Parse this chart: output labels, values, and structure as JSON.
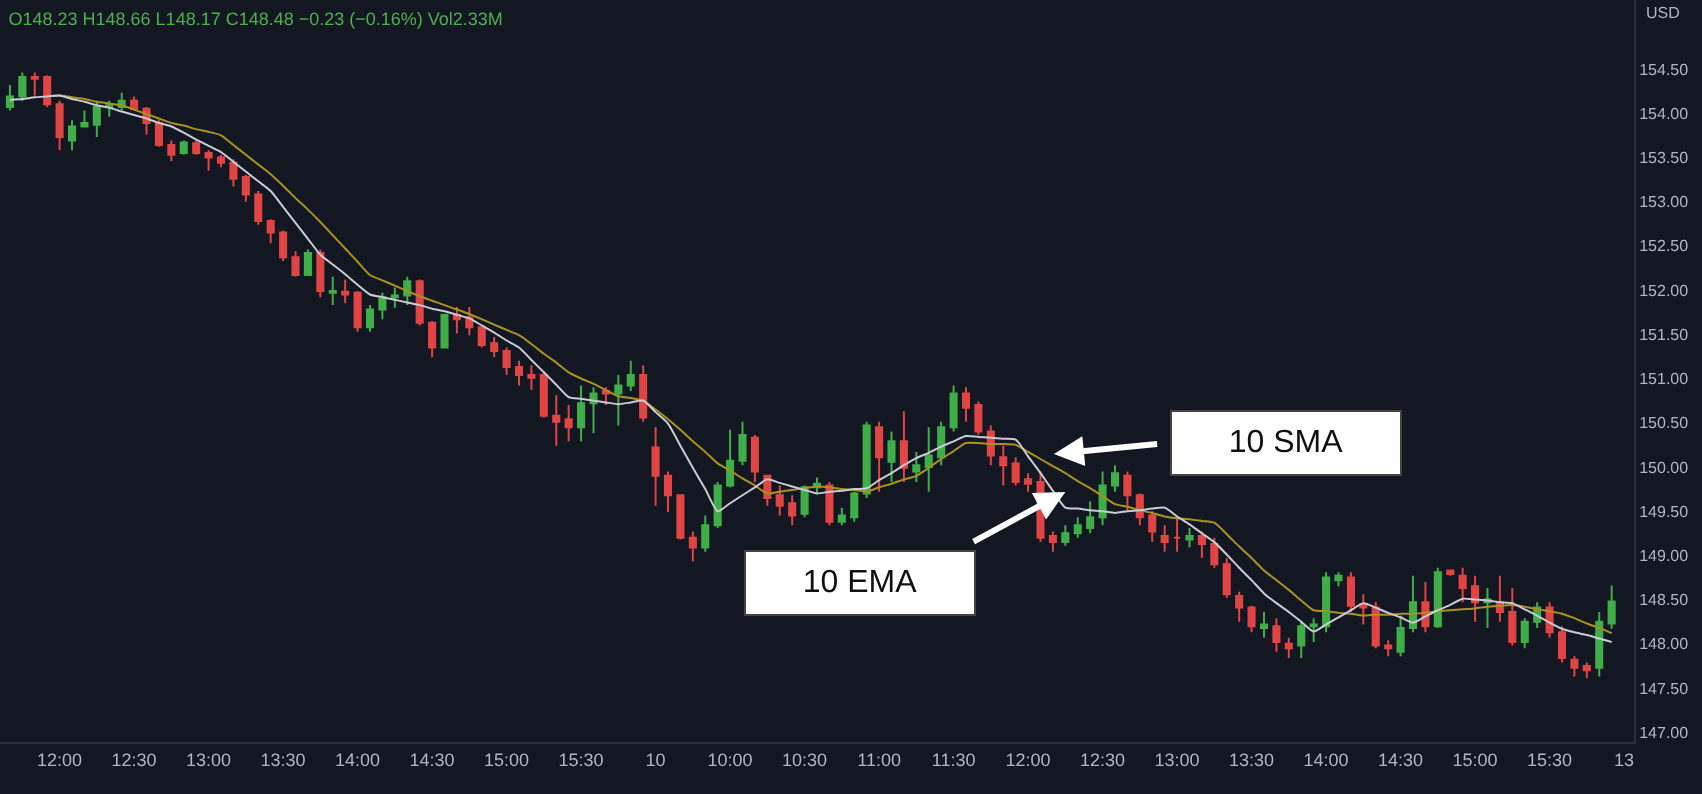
{
  "chart_data": {
    "type": "candlestick",
    "title": "O148.23 H148.66 L148.17 C148.48 −0.23 (−0.16%) Vol2.33M",
    "ylabel": "USD",
    "categories": [
      null,
      null,
      null,
      null,
      "12:00",
      null,
      null,
      null,
      null,
      null,
      "12:30",
      null,
      null,
      null,
      null,
      null,
      "13:00",
      null,
      null,
      null,
      null,
      null,
      "13:30",
      null,
      null,
      null,
      null,
      null,
      "14:00",
      null,
      null,
      null,
      null,
      null,
      "14:30",
      null,
      null,
      null,
      null,
      null,
      "15:00",
      null,
      null,
      null,
      null,
      null,
      "15:30",
      null,
      null,
      null,
      null,
      null,
      "10",
      null,
      null,
      null,
      null,
      null,
      "10:00",
      null,
      null,
      null,
      null,
      null,
      "10:30",
      null,
      null,
      null,
      null,
      null,
      "11:00",
      null,
      null,
      null,
      null,
      null,
      "11:30",
      null,
      null,
      null,
      null,
      null,
      "12:00",
      null,
      null,
      null,
      null,
      null,
      "12:30",
      null,
      null,
      null,
      null,
      null,
      "13:00",
      null,
      null,
      null,
      null,
      null,
      "13:30",
      null,
      null,
      null,
      null,
      null,
      "14:00",
      null,
      null,
      null,
      null,
      null,
      "14:30",
      null,
      null,
      null,
      null,
      null,
      "15:00",
      null,
      null,
      null,
      null,
      null,
      "15:30",
      null,
      null,
      null,
      null,
      null,
      "13"
    ],
    "ohlc": [
      [
        154.07,
        154.32,
        154.03,
        154.19
      ],
      [
        154.19,
        154.46,
        154.14,
        154.41
      ],
      [
        154.41,
        154.46,
        154.2,
        154.39
      ],
      [
        154.41,
        154.43,
        154.07,
        154.1
      ],
      [
        154.1,
        154.14,
        153.58,
        153.73
      ],
      [
        153.69,
        153.92,
        153.58,
        153.85
      ],
      [
        153.85,
        154.03,
        153.85,
        153.89
      ],
      [
        153.87,
        154.14,
        153.73,
        154.07
      ],
      [
        154.07,
        154.14,
        153.96,
        154.09
      ],
      [
        154.07,
        154.23,
        154.03,
        154.14
      ],
      [
        154.14,
        154.19,
        154.03,
        154.05
      ],
      [
        154.05,
        154.07,
        153.76,
        153.89
      ],
      [
        153.89,
        153.92,
        153.62,
        153.64
      ],
      [
        153.64,
        153.69,
        153.46,
        153.53
      ],
      [
        153.55,
        153.69,
        153.53,
        153.67
      ],
      [
        153.66,
        153.69,
        153.53,
        153.55
      ],
      [
        153.55,
        153.58,
        153.35,
        153.5
      ],
      [
        153.5,
        153.53,
        153.39,
        153.44
      ],
      [
        153.44,
        153.48,
        153.17,
        153.26
      ],
      [
        153.28,
        153.3,
        153.0,
        153.08
      ],
      [
        153.08,
        153.12,
        152.74,
        152.78
      ],
      [
        152.78,
        152.8,
        152.53,
        152.65
      ],
      [
        152.65,
        152.67,
        152.33,
        152.37
      ],
      [
        152.37,
        152.44,
        152.15,
        152.17
      ],
      [
        152.17,
        152.46,
        152.17,
        152.42
      ],
      [
        152.42,
        152.46,
        151.92,
        151.99
      ],
      [
        151.97,
        152.15,
        151.83,
        151.99
      ],
      [
        151.98,
        152.12,
        151.85,
        151.95
      ],
      [
        151.97,
        151.99,
        151.53,
        151.58
      ],
      [
        151.58,
        151.83,
        151.53,
        151.78
      ],
      [
        151.78,
        151.97,
        151.67,
        151.92
      ],
      [
        151.92,
        152.03,
        151.8,
        151.94
      ],
      [
        151.94,
        152.15,
        151.83,
        152.1
      ],
      [
        152.1,
        152.12,
        151.6,
        151.63
      ],
      [
        151.63,
        151.65,
        151.24,
        151.35
      ],
      [
        151.35,
        151.72,
        151.35,
        151.72
      ],
      [
        151.72,
        151.81,
        151.51,
        151.67
      ],
      [
        151.69,
        151.81,
        151.49,
        151.58
      ],
      [
        151.58,
        151.6,
        151.35,
        151.38
      ],
      [
        151.4,
        151.47,
        151.24,
        151.31
      ],
      [
        151.31,
        151.35,
        151.04,
        151.13
      ],
      [
        151.13,
        151.2,
        150.92,
        151.04
      ],
      [
        151.04,
        151.15,
        150.87,
        151.01
      ],
      [
        151.04,
        151.08,
        150.56,
        150.58
      ],
      [
        150.58,
        150.81,
        150.24,
        150.51
      ],
      [
        150.54,
        150.7,
        150.29,
        150.45
      ],
      [
        150.45,
        150.92,
        150.29,
        150.72
      ],
      [
        150.72,
        150.9,
        150.38,
        150.83
      ],
      [
        150.86,
        150.9,
        150.7,
        150.83
      ],
      [
        150.83,
        151.04,
        150.47,
        150.92
      ],
      [
        150.92,
        151.2,
        150.86,
        151.04
      ],
      [
        151.04,
        151.15,
        150.51,
        150.56
      ],
      [
        150.22,
        150.45,
        149.56,
        149.9
      ],
      [
        149.9,
        149.95,
        149.49,
        149.68
      ],
      [
        149.68,
        149.68,
        149.18,
        149.2
      ],
      [
        149.2,
        149.27,
        148.93,
        149.09
      ],
      [
        149.09,
        149.45,
        149.04,
        149.34
      ],
      [
        149.34,
        149.83,
        149.31,
        149.79
      ],
      [
        149.79,
        150.42,
        149.77,
        150.07
      ],
      [
        150.07,
        150.51,
        150.02,
        150.36
      ],
      [
        150.33,
        150.36,
        149.83,
        149.95
      ],
      [
        149.9,
        149.9,
        149.56,
        149.65
      ],
      [
        149.68,
        149.79,
        149.45,
        149.56
      ],
      [
        149.59,
        149.68,
        149.34,
        149.45
      ],
      [
        149.47,
        149.79,
        149.43,
        149.77
      ],
      [
        149.77,
        149.88,
        149.7,
        149.81
      ],
      [
        149.79,
        149.83,
        149.34,
        149.38
      ],
      [
        149.38,
        149.54,
        149.34,
        149.45
      ],
      [
        149.43,
        149.72,
        149.38,
        149.7
      ],
      [
        149.7,
        150.51,
        149.65,
        150.47
      ],
      [
        150.45,
        150.51,
        149.72,
        150.11
      ],
      [
        150.06,
        150.4,
        149.83,
        150.29
      ],
      [
        150.29,
        150.63,
        149.83,
        149.99
      ],
      [
        149.95,
        150.17,
        149.83,
        150.02
      ],
      [
        150.0,
        150.45,
        149.72,
        150.13
      ],
      [
        150.11,
        150.51,
        150.02,
        150.45
      ],
      [
        150.45,
        150.92,
        150.4,
        150.83
      ],
      [
        150.83,
        150.9,
        150.51,
        150.67
      ],
      [
        150.7,
        150.74,
        150.36,
        150.4
      ],
      [
        150.4,
        150.47,
        150.02,
        150.13
      ],
      [
        150.11,
        150.24,
        149.79,
        150.02
      ],
      [
        150.04,
        150.11,
        149.79,
        149.83
      ],
      [
        149.86,
        149.93,
        149.72,
        149.81
      ],
      [
        149.83,
        149.95,
        149.15,
        149.2
      ],
      [
        149.22,
        149.27,
        149.04,
        149.15
      ],
      [
        149.15,
        149.34,
        149.11,
        149.25
      ],
      [
        149.25,
        149.43,
        149.2,
        149.34
      ],
      [
        149.31,
        149.61,
        149.25,
        149.43
      ],
      [
        149.43,
        149.95,
        149.34,
        149.79
      ],
      [
        149.79,
        150.02,
        149.72,
        149.93
      ],
      [
        149.9,
        149.95,
        149.49,
        149.68
      ],
      [
        149.68,
        149.7,
        149.34,
        149.43
      ],
      [
        149.45,
        149.5,
        149.15,
        149.27
      ],
      [
        149.22,
        149.34,
        149.04,
        149.15
      ],
      [
        149.2,
        149.43,
        149.04,
        149.2
      ],
      [
        149.18,
        149.31,
        149.09,
        149.22
      ],
      [
        149.22,
        149.27,
        148.97,
        149.13
      ],
      [
        149.13,
        149.2,
        148.86,
        148.9
      ],
      [
        148.9,
        148.97,
        148.52,
        148.56
      ],
      [
        148.54,
        148.59,
        148.25,
        148.41
      ],
      [
        148.41,
        148.43,
        148.13,
        148.2
      ],
      [
        148.18,
        148.36,
        148.07,
        148.22
      ],
      [
        148.2,
        148.29,
        147.91,
        148.02
      ],
      [
        148.0,
        148.07,
        147.84,
        147.95
      ],
      [
        147.98,
        148.25,
        147.84,
        148.2
      ],
      [
        148.2,
        148.29,
        148.02,
        148.22
      ],
      [
        148.2,
        148.81,
        148.13,
        148.75
      ],
      [
        148.72,
        148.81,
        148.65,
        148.77
      ],
      [
        148.75,
        148.81,
        148.36,
        148.43
      ],
      [
        148.45,
        148.56,
        148.22,
        148.41
      ],
      [
        148.41,
        148.47,
        147.95,
        147.98
      ],
      [
        147.98,
        148.04,
        147.86,
        147.95
      ],
      [
        147.91,
        148.32,
        147.86,
        148.18
      ],
      [
        148.18,
        148.77,
        148.13,
        148.47
      ],
      [
        148.47,
        148.7,
        148.13,
        148.2
      ],
      [
        148.2,
        148.86,
        148.18,
        148.81
      ],
      [
        148.83,
        148.84,
        148.77,
        148.79
      ],
      [
        148.77,
        148.86,
        148.47,
        148.63
      ],
      [
        148.65,
        148.77,
        148.25,
        148.47
      ],
      [
        148.47,
        148.63,
        148.18,
        148.5
      ],
      [
        148.47,
        148.77,
        148.25,
        148.36
      ],
      [
        148.36,
        148.63,
        147.98,
        148.02
      ],
      [
        148.02,
        148.29,
        147.95,
        148.25
      ],
      [
        148.25,
        148.47,
        148.18,
        148.41
      ],
      [
        148.41,
        148.47,
        148.07,
        148.13
      ],
      [
        148.13,
        148.2,
        147.79,
        147.84
      ],
      [
        147.82,
        147.86,
        147.63,
        147.73
      ],
      [
        147.75,
        147.79,
        147.61,
        147.7
      ],
      [
        147.73,
        148.36,
        147.63,
        148.25
      ],
      [
        148.23,
        148.66,
        148.17,
        148.48
      ],
      null
    ],
    "colors": [
      "#3fae49",
      "#3fae49",
      "#e04444",
      "#e04444",
      "#e04444",
      "#3fae49",
      "#3fae49",
      "#3fae49",
      "#3fae49",
      "#3fae49",
      "#e04444",
      "#e04444",
      "#e04444",
      "#e04444",
      "#3fae49",
      "#e04444",
      "#e04444",
      "#e04444",
      "#e04444",
      "#e04444",
      "#e04444",
      "#e04444",
      "#e04444",
      "#e04444",
      "#3fae49",
      "#e04444",
      "#3fae49",
      "#e04444",
      "#e04444",
      "#3fae49",
      "#3fae49",
      "#3fae49",
      "#3fae49",
      "#e04444",
      "#e04444",
      "#3fae49",
      "#e04444",
      "#e04444",
      "#e04444",
      "#e04444",
      "#e04444",
      "#e04444",
      "#e04444",
      "#e04444",
      "#e04444",
      "#e04444",
      "#3fae49",
      "#3fae49",
      "#e04444",
      "#3fae49",
      "#3fae49",
      "#e04444",
      "#e04444",
      "#e04444",
      "#e04444",
      "#e04444",
      "#3fae49",
      "#3fae49",
      "#3fae49",
      "#3fae49",
      "#e04444",
      "#e04444",
      "#e04444",
      "#e04444",
      "#3fae49",
      "#3fae49",
      "#e04444",
      "#3fae49",
      "#3fae49",
      "#3fae49",
      "#e04444",
      "#3fae49",
      "#e04444",
      "#3fae49",
      "#3fae49",
      "#3fae49",
      "#3fae49",
      "#e04444",
      "#e04444",
      "#e04444",
      "#e04444",
      "#e04444",
      "#e04444",
      "#e04444",
      "#e04444",
      "#3fae49",
      "#3fae49",
      "#3fae49",
      "#3fae49",
      "#3fae49",
      "#e04444",
      "#e04444",
      "#e04444",
      "#e04444",
      "#e04444",
      "#3fae49",
      "#e04444",
      "#e04444",
      "#e04444",
      "#e04444",
      "#e04444",
      "#3fae49",
      "#e04444",
      "#e04444",
      "#3fae49",
      "#3fae49",
      "#3fae49",
      "#3fae49",
      "#e04444",
      "#e04444",
      "#e04444",
      "#e04444",
      "#3fae49",
      "#3fae49",
      "#e04444",
      "#3fae49",
      "#e04444",
      "#e04444",
      "#e04444",
      "#3fae49",
      "#e04444",
      "#e04444",
      "#3fae49",
      "#3fae49",
      "#e04444",
      "#e04444",
      "#e04444",
      "#e04444",
      "#3fae49",
      "#3fae49",
      null
    ],
    "series": [
      {
        "type": "line",
        "color": "#a8921e",
        "values": [
          null,
          null,
          null,
          154.19,
          154.2,
          154.18,
          154.16,
          154.13,
          154.11,
          154.09,
          154.04,
          153.99,
          153.94,
          153.89,
          153.86,
          153.82,
          153.79,
          153.75,
          153.64,
          153.53,
          153.42,
          153.31,
          153.18,
          153.04,
          152.91,
          152.77,
          152.62,
          152.47,
          152.32,
          152.17,
          152.11,
          152.05,
          151.99,
          151.93,
          151.88,
          151.83,
          151.78,
          151.73,
          151.67,
          151.61,
          151.55,
          151.49,
          151.39,
          151.28,
          151.18,
          151.07,
          151,
          150.94,
          150.87,
          150.8,
          150.78,
          150.75,
          150.65,
          150.54,
          150.42,
          150.29,
          150.17,
          150.04,
          149.96,
          149.87,
          149.79,
          149.7,
          149.72,
          149.74,
          149.76,
          149.78,
          149.77,
          149.75,
          149.74,
          149.72,
          149.77,
          149.81,
          149.86,
          149.9,
          149.99,
          150.09,
          150.18,
          150.27,
          150.27,
          150.26,
          150.26,
          150.25,
          150.17,
          150.09,
          150.01,
          149.93,
          149.84,
          149.76,
          149.67,
          149.58,
          149.55,
          149.51,
          149.48,
          149.44,
          149.42,
          149.41,
          149.39,
          149.37,
          149.24,
          149.1,
          148.97,
          148.83,
          148.72,
          148.61,
          148.49,
          148.38,
          148.37,
          148.35,
          148.34,
          148.32,
          148.33,
          148.33,
          148.34,
          148.34,
          148.35,
          148.37,
          148.38,
          148.39,
          148.4,
          148.42,
          148.43,
          148.44,
          148.42,
          148.39,
          148.37,
          148.34,
          148.29,
          148.23,
          148.18,
          148.12,
          null
        ]
      },
      {
        "type": "line",
        "color": "#c9cbd3",
        "values": [
          154.15,
          154.16,
          154.18,
          154.19,
          154.2,
          154.16,
          154.13,
          154.09,
          154.06,
          154.02,
          153.98,
          153.94,
          153.89,
          153.85,
          153.78,
          153.7,
          153.63,
          153.56,
          153.45,
          153.34,
          153.23,
          153.12,
          152.94,
          152.76,
          152.58,
          152.4,
          152.29,
          152.18,
          152.06,
          151.95,
          151.92,
          151.89,
          151.86,
          151.83,
          151.79,
          151.76,
          151.72,
          151.68,
          151.6,
          151.52,
          151.43,
          151.35,
          151.21,
          151.07,
          150.93,
          150.79,
          150.77,
          150.75,
          150.73,
          150.71,
          150.73,
          150.75,
          150.62,
          150.49,
          150.24,
          149.99,
          149.75,
          149.5,
          149.59,
          149.68,
          149.77,
          149.86,
          149.82,
          149.78,
          149.74,
          149.7,
          149.72,
          149.73,
          149.75,
          149.76,
          149.85,
          149.93,
          150.02,
          150.1,
          150.16,
          150.23,
          150.29,
          150.35,
          150.34,
          150.33,
          150.32,
          150.31,
          150.12,
          149.93,
          149.73,
          149.54,
          149.53,
          149.51,
          149.5,
          149.48,
          149.5,
          149.51,
          149.53,
          149.54,
          149.44,
          149.35,
          149.25,
          149.15,
          149.01,
          148.86,
          148.72,
          148.57,
          148.46,
          148.36,
          148.25,
          148.14,
          148.22,
          148.3,
          148.38,
          148.46,
          148.41,
          148.35,
          148.3,
          148.24,
          148.31,
          148.38,
          148.44,
          148.51,
          148.5,
          148.49,
          148.47,
          148.46,
          148.39,
          148.32,
          148.24,
          148.17,
          148.13,
          148.1,
          148.06,
          148.02,
          null
        ]
      }
    ],
    "annotations": [
      "10 SMA",
      "10 EMA"
    ],
    "ylim": [
      146.89,
      155.28
    ],
    "yticks": [
      {
        "value": 147,
        "label": "147.00"
      },
      {
        "value": 147.5,
        "label": "147.50"
      },
      {
        "value": 148,
        "label": "148.00"
      },
      {
        "value": 148.5,
        "label": "148.50"
      },
      {
        "value": 149,
        "label": "149.00"
      },
      {
        "value": 149.5,
        "label": "149.50"
      },
      {
        "value": 150,
        "label": "150.00"
      },
      {
        "value": 150.5,
        "label": "150.50"
      },
      {
        "value": 151,
        "label": "151.00"
      },
      {
        "value": 151.5,
        "label": "151.50"
      },
      {
        "value": 152,
        "label": "152.00"
      },
      {
        "value": 152.5,
        "label": "152.50"
      },
      {
        "value": 153,
        "label": "153.00"
      },
      {
        "value": 153.5,
        "label": "153.50"
      },
      {
        "value": 154,
        "label": "154.00"
      },
      {
        "value": 154.5,
        "label": "154.50"
      }
    ],
    "grid": false
  }
}
